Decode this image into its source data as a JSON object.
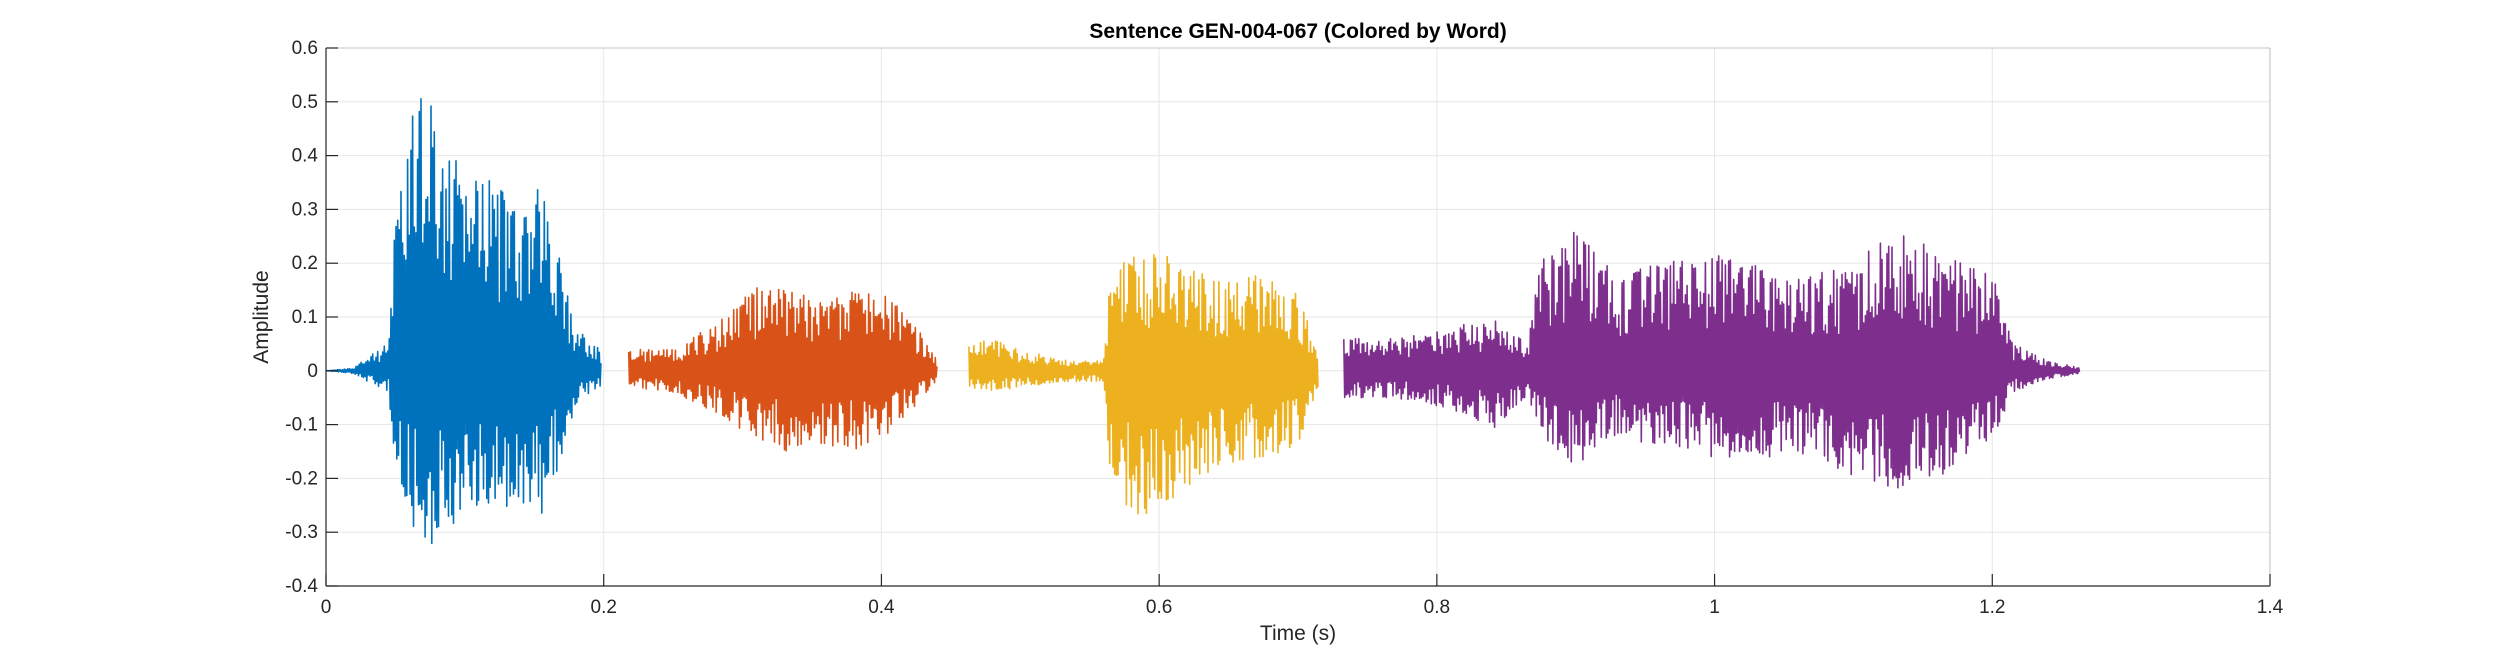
{
  "chart_data": {
    "type": "line",
    "title": "Sentence GEN-004-067 (Colored by Word)",
    "xlabel": "Time (s)",
    "ylabel": "Amplitude",
    "xlim": [
      0,
      1.4
    ],
    "ylim": [
      -0.4,
      0.6
    ],
    "xticks": [
      0,
      0.2,
      0.4,
      0.6,
      0.8,
      1,
      1.2,
      1.4
    ],
    "xtick_labels": [
      "0",
      "0.2",
      "0.4",
      "0.6",
      "0.8",
      "1",
      "1.2",
      "1.4"
    ],
    "yticks": [
      -0.4,
      -0.3,
      -0.2,
      -0.1,
      0,
      0.1,
      0.2,
      0.3,
      0.4,
      0.5,
      0.6
    ],
    "ytick_labels": [
      "-0.4",
      "-0.3",
      "-0.2",
      "-0.1",
      "0",
      "0.1",
      "0.2",
      "0.3",
      "0.4",
      "0.5",
      "0.6"
    ],
    "grid": true,
    "series": [
      {
        "color": "#0072BD",
        "start": 0.0,
        "end": 0.198,
        "envelope": [
          [
            0.0,
            0.0
          ],
          [
            0.02,
            0.005
          ],
          [
            0.03,
            0.03
          ],
          [
            0.045,
            0.05
          ],
          [
            0.05,
            0.28
          ],
          [
            0.06,
            0.45
          ],
          [
            0.072,
            0.57
          ],
          [
            0.085,
            0.42
          ],
          [
            0.1,
            0.38
          ],
          [
            0.12,
            0.35
          ],
          [
            0.14,
            0.33
          ],
          [
            0.155,
            0.34
          ],
          [
            0.165,
            0.25
          ],
          [
            0.18,
            0.08
          ],
          [
            0.198,
            0.04
          ]
        ],
        "envelope_negative": [
          [
            0.0,
            0.0
          ],
          [
            0.02,
            0.005
          ],
          [
            0.03,
            0.02
          ],
          [
            0.045,
            0.04
          ],
          [
            0.05,
            0.2
          ],
          [
            0.06,
            0.28
          ],
          [
            0.072,
            0.34
          ],
          [
            0.085,
            0.3
          ],
          [
            0.1,
            0.27
          ],
          [
            0.12,
            0.25
          ],
          [
            0.14,
            0.26
          ],
          [
            0.155,
            0.27
          ],
          [
            0.165,
            0.2
          ],
          [
            0.18,
            0.06
          ],
          [
            0.198,
            0.03
          ]
        ]
      },
      {
        "color": "#D95319",
        "start": 0.218,
        "end": 0.44,
        "envelope": [
          [
            0.218,
            0.04
          ],
          [
            0.25,
            0.04
          ],
          [
            0.28,
            0.09
          ],
          [
            0.31,
            0.16
          ],
          [
            0.33,
            0.15
          ],
          [
            0.36,
            0.13
          ],
          [
            0.39,
            0.16
          ],
          [
            0.41,
            0.13
          ],
          [
            0.43,
            0.07
          ],
          [
            0.44,
            0.02
          ]
        ],
        "envelope_negative": [
          [
            0.218,
            0.03
          ],
          [
            0.25,
            0.04
          ],
          [
            0.28,
            0.08
          ],
          [
            0.31,
            0.13
          ],
          [
            0.33,
            0.15
          ],
          [
            0.36,
            0.14
          ],
          [
            0.39,
            0.15
          ],
          [
            0.41,
            0.11
          ],
          [
            0.43,
            0.05
          ],
          [
            0.44,
            0.02
          ]
        ]
      },
      {
        "color": "#EDB120",
        "start": 0.463,
        "end": 0.715,
        "envelope": [
          [
            0.463,
            0.05
          ],
          [
            0.48,
            0.06
          ],
          [
            0.5,
            0.04
          ],
          [
            0.53,
            0.02
          ],
          [
            0.56,
            0.02
          ],
          [
            0.565,
            0.2
          ],
          [
            0.585,
            0.23
          ],
          [
            0.61,
            0.21
          ],
          [
            0.64,
            0.17
          ],
          [
            0.67,
            0.18
          ],
          [
            0.7,
            0.15
          ],
          [
            0.715,
            0.04
          ]
        ],
        "envelope_negative": [
          [
            0.463,
            0.03
          ],
          [
            0.48,
            0.04
          ],
          [
            0.5,
            0.03
          ],
          [
            0.53,
            0.02
          ],
          [
            0.56,
            0.02
          ],
          [
            0.565,
            0.2
          ],
          [
            0.585,
            0.29
          ],
          [
            0.61,
            0.24
          ],
          [
            0.64,
            0.18
          ],
          [
            0.67,
            0.17
          ],
          [
            0.7,
            0.14
          ],
          [
            0.715,
            0.03
          ]
        ]
      },
      {
        "color": "#7E2F8E",
        "start": 0.733,
        "end": 1.263,
        "envelope": [
          [
            0.733,
            0.06
          ],
          [
            0.77,
            0.06
          ],
          [
            0.81,
            0.08
          ],
          [
            0.84,
            0.1
          ],
          [
            0.865,
            0.05
          ],
          [
            0.875,
            0.22
          ],
          [
            0.9,
            0.26
          ],
          [
            0.93,
            0.18
          ],
          [
            0.97,
            0.21
          ],
          [
            1.02,
            0.22
          ],
          [
            1.06,
            0.17
          ],
          [
            1.1,
            0.2
          ],
          [
            1.13,
            0.27
          ],
          [
            1.16,
            0.22
          ],
          [
            1.2,
            0.18
          ],
          [
            1.215,
            0.05
          ],
          [
            1.24,
            0.02
          ],
          [
            1.263,
            0.005
          ]
        ],
        "envelope_negative": [
          [
            0.733,
            0.05
          ],
          [
            0.77,
            0.05
          ],
          [
            0.81,
            0.07
          ],
          [
            0.84,
            0.11
          ],
          [
            0.865,
            0.05
          ],
          [
            0.875,
            0.12
          ],
          [
            0.9,
            0.18
          ],
          [
            0.93,
            0.12
          ],
          [
            0.97,
            0.15
          ],
          [
            1.02,
            0.17
          ],
          [
            1.06,
            0.15
          ],
          [
            1.1,
            0.2
          ],
          [
            1.13,
            0.22
          ],
          [
            1.16,
            0.2
          ],
          [
            1.2,
            0.13
          ],
          [
            1.215,
            0.04
          ],
          [
            1.24,
            0.015
          ],
          [
            1.263,
            0.005
          ]
        ]
      }
    ]
  }
}
